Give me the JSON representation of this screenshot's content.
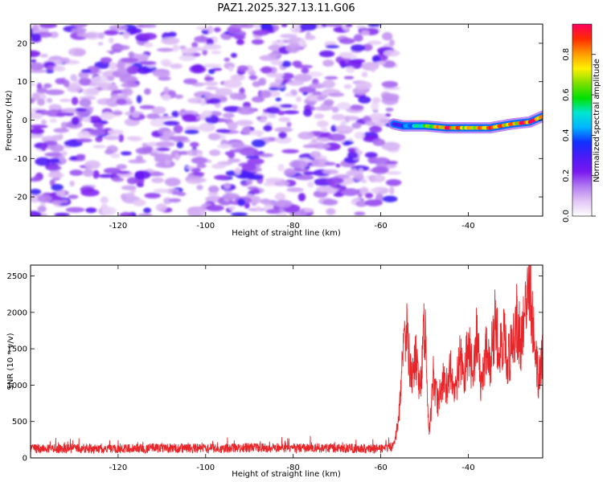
{
  "title": "PAZ1.2025.327.13.11.G06",
  "chart_data": [
    {
      "type": "heatmap",
      "xlabel": "Height of straight line (km)",
      "ylabel": "Frequency (Hz)",
      "xlim": [
        -140,
        -23
      ],
      "ylim": [
        -25,
        25
      ],
      "x_ticks": [
        -120,
        -100,
        -80,
        -60,
        -40
      ],
      "y_ticks": [
        -20,
        -10,
        0,
        10,
        20
      ],
      "colorbar": {
        "label": "Normalized spectral amplitude",
        "ticks": [
          0.0,
          0.2,
          0.4,
          0.6,
          0.8
        ],
        "range": [
          0,
          0.95
        ],
        "colors": [
          "#ffffff",
          "#e3c6f5",
          "#b37cf0",
          "#7a18f0",
          "#4b1af5",
          "#1030ff",
          "#00b4ff",
          "#00e6d2",
          "#00e000",
          "#7fe000",
          "#fff000",
          "#ff9a00",
          "#ff2a00",
          "#ff0060"
        ]
      },
      "noise_region": {
        "x_range": [
          -140,
          -57
        ],
        "freq_range": [
          -25,
          25
        ],
        "typical_amplitude": [
          0.0,
          0.25
        ]
      },
      "signal_track": {
        "x": [
          -57,
          -55,
          -50,
          -45,
          -40,
          -35,
          -30,
          -26,
          -23
        ],
        "frequency": [
          -1,
          -1.5,
          -1.5,
          -2,
          -2,
          -2,
          -1,
          -0.5,
          1
        ],
        "amplitude": [
          0.25,
          0.35,
          0.55,
          0.85,
          0.7,
          0.8,
          0.75,
          0.9,
          0.75
        ]
      }
    },
    {
      "type": "line",
      "xlabel": "Height of straight line (km)",
      "ylabel": "SNR (10 * v/v)",
      "xlim": [
        -140,
        -23
      ],
      "ylim": [
        0,
        2650
      ],
      "x_ticks": [
        -120,
        -100,
        -80,
        -60,
        -40
      ],
      "y_ticks": [
        0,
        500,
        1000,
        1500,
        2000,
        2500
      ],
      "color": "#e8262a",
      "series": {
        "name": "SNR",
        "x": [
          -140,
          -130,
          -120,
          -110,
          -100,
          -90,
          -80,
          -70,
          -60,
          -57,
          -56,
          -55,
          -54,
          -53,
          -52,
          -51,
          -50,
          -49,
          -48,
          -47,
          -46,
          -45,
          -44,
          -43,
          -42,
          -41,
          -40,
          -39,
          -38,
          -37,
          -36,
          -35,
          -34,
          -33,
          -32,
          -31,
          -30,
          -29,
          -28,
          -27,
          -26,
          -25,
          -24,
          -23
        ],
        "values": [
          120,
          125,
          120,
          130,
          125,
          135,
          130,
          130,
          120,
          150,
          500,
          1300,
          1800,
          1100,
          1400,
          900,
          1950,
          300,
          1100,
          750,
          1050,
          950,
          1200,
          850,
          1400,
          1050,
          1550,
          1150,
          1700,
          900,
          1450,
          1250,
          1850,
          1500,
          1700,
          1350,
          1550,
          1900,
          1600,
          1950,
          2620,
          1600,
          1100,
          1500
        ]
      }
    }
  ]
}
